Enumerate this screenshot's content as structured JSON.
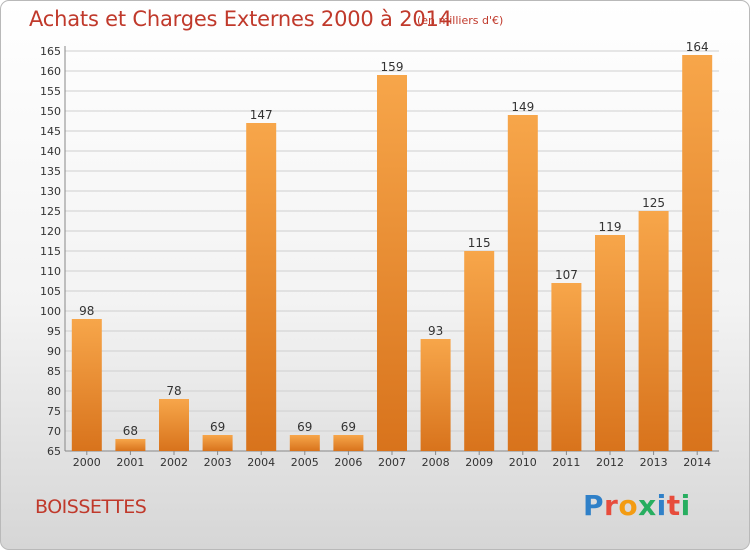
{
  "header": {
    "title": "Achats et Charges Externes 2000 à 2014",
    "subtitle": "(en milliers d'€)"
  },
  "footer": {
    "town": "BOISSETTES",
    "brand_letters": [
      {
        "char": "P",
        "color": "#2f80c8"
      },
      {
        "char": "r",
        "color": "#e74c3c"
      },
      {
        "char": "o",
        "color": "#f39c12"
      },
      {
        "char": "x",
        "color": "#27ae60"
      },
      {
        "char": "i",
        "color": "#2f80c8"
      },
      {
        "char": "t",
        "color": "#e74c3c"
      },
      {
        "char": "i",
        "color": "#27ae60"
      }
    ]
  },
  "colors": {
    "bar_light": "#f7a64a",
    "bar_dark": "#d8731c",
    "grid": "#cfcfcf",
    "text": "#333333",
    "accent": "#c0392b"
  },
  "chart_data": {
    "type": "bar",
    "categories": [
      "2000",
      "2001",
      "2002",
      "2003",
      "2004",
      "2005",
      "2006",
      "2007",
      "2008",
      "2009",
      "2010",
      "2011",
      "2012",
      "2013",
      "2014"
    ],
    "values": [
      98,
      68,
      78,
      69,
      147,
      69,
      69,
      159,
      93,
      115,
      149,
      107,
      119,
      125,
      164
    ],
    "title": "Achats et Charges Externes 2000 à 2014",
    "ylim": [
      65,
      165
    ],
    "ytick_step": 5,
    "grid": true
  }
}
